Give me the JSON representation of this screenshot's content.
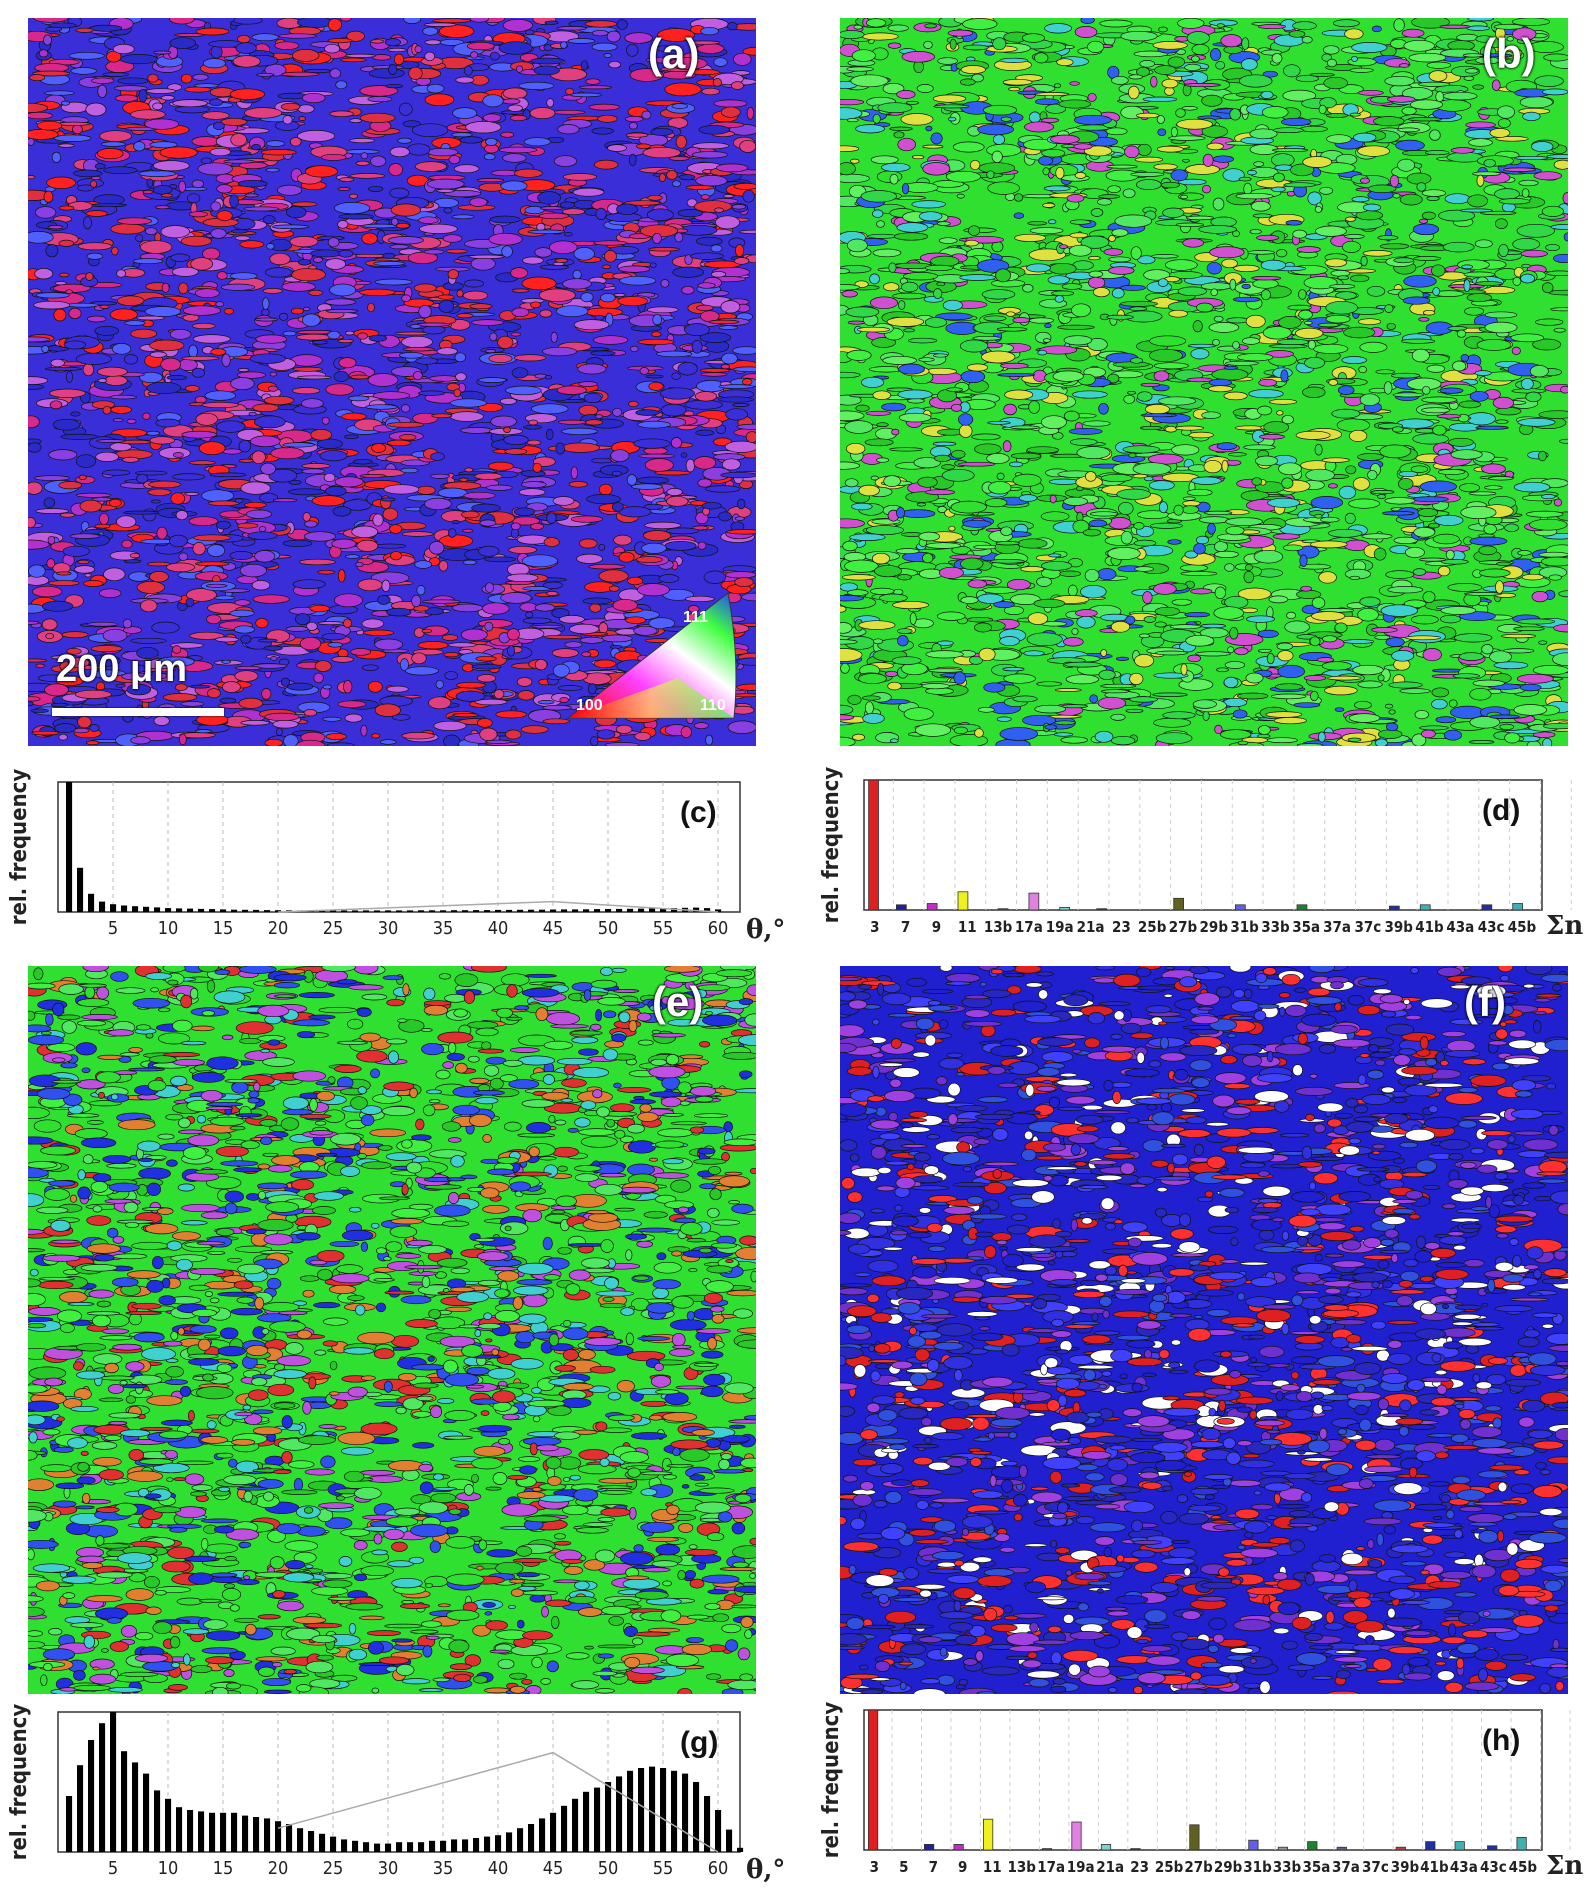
{
  "panels": {
    "a": {
      "label": "(a)",
      "palette": [
        "#3a2ed8",
        "#2a2ac8",
        "#d8288a",
        "#e03040",
        "#b030d0",
        "#8a40e0",
        "#ff2020",
        "#5060ff",
        "#c060e0",
        "#e04080"
      ]
    },
    "b": {
      "label": "(b)",
      "palette": [
        "#30e030",
        "#40f040",
        "#28c828",
        "#50e860",
        "#30d848",
        "#60f060",
        "#d050d0",
        "#3060f0",
        "#e0e040",
        "#40d0d0"
      ]
    },
    "e": {
      "label": "(e)",
      "palette": [
        "#30e030",
        "#40f040",
        "#2030e0",
        "#e03030",
        "#28c828",
        "#40d0d0",
        "#e08030",
        "#50e860",
        "#3050f0",
        "#c050e0"
      ]
    },
    "f": {
      "label": "(f)",
      "palette": [
        "#2020d0",
        "#3030e0",
        "#2828c0",
        "#e02020",
        "#7030d0",
        "#4040ff",
        "#ff3030",
        "#a040e0",
        "#ffffff",
        "#3050e0"
      ]
    }
  },
  "scale_bar": {
    "text": "200 μm"
  },
  "color_key": {
    "labels": [
      "111",
      "100",
      "110"
    ]
  },
  "chart_data": [
    {
      "id": "c",
      "label": "(c)",
      "type": "bar",
      "ylabel": "rel. frequency",
      "xunit": "θ,°",
      "xticks": [
        5,
        10,
        15,
        20,
        25,
        30,
        35,
        40,
        45,
        50,
        55,
        60
      ],
      "xlim": [
        0,
        62
      ],
      "ylim": [
        0,
        1
      ],
      "x": [
        1,
        2,
        3,
        4,
        5,
        6,
        7,
        8,
        9,
        10,
        11,
        12,
        13,
        14,
        15,
        16,
        17,
        18,
        19,
        20,
        21,
        22,
        23,
        24,
        25,
        26,
        27,
        28,
        29,
        30,
        31,
        32,
        33,
        34,
        35,
        36,
        37,
        38,
        39,
        40,
        41,
        42,
        43,
        44,
        45,
        46,
        47,
        48,
        49,
        50,
        51,
        52,
        53,
        54,
        55,
        56,
        57,
        58,
        59,
        60
      ],
      "values": [
        1.0,
        0.34,
        0.14,
        0.08,
        0.06,
        0.05,
        0.045,
        0.04,
        0.035,
        0.03,
        0.028,
        0.026,
        0.024,
        0.022,
        0.02,
        0.018,
        0.017,
        0.016,
        0.015,
        0.014,
        0.013,
        0.012,
        0.012,
        0.012,
        0.012,
        0.012,
        0.012,
        0.012,
        0.012,
        0.012,
        0.012,
        0.012,
        0.013,
        0.013,
        0.013,
        0.014,
        0.014,
        0.015,
        0.015,
        0.016,
        0.016,
        0.017,
        0.018,
        0.018,
        0.019,
        0.02,
        0.02,
        0.021,
        0.022,
        0.023,
        0.024,
        0.025,
        0.026,
        0.027,
        0.028,
        0.03,
        0.032,
        0.034,
        0.03,
        0.02
      ],
      "reference_line": {
        "x": [
          20,
          45,
          60
        ],
        "y": [
          0.0,
          0.08,
          0.0
        ]
      }
    },
    {
      "id": "d",
      "label": "(d)",
      "type": "bar",
      "ylabel": "rel. frequency",
      "xunit": "Σn",
      "categories": [
        "3",
        "7",
        "9",
        "11",
        "13b",
        "17a",
        "19a",
        "21a",
        "23",
        "25b",
        "27b",
        "29b",
        "31b",
        "33b",
        "35a",
        "37a",
        "37c",
        "39b",
        "41b",
        "43a",
        "43c",
        "45b"
      ],
      "bars": [
        {
          "i": 0.0,
          "value": 1.0,
          "color": "#e02020"
        },
        {
          "i": 0.9,
          "value": 0.04,
          "color": "#2020a0"
        },
        {
          "i": 1.9,
          "value": 0.05,
          "color": "#c030c0"
        },
        {
          "i": 2.9,
          "value": 0.14,
          "color": "#f0f020"
        },
        {
          "i": 4.2,
          "value": 0.01,
          "color": "#555"
        },
        {
          "i": 5.2,
          "value": 0.13,
          "color": "#e080e0"
        },
        {
          "i": 6.2,
          "value": 0.02,
          "color": "#80d0d0"
        },
        {
          "i": 7.4,
          "value": 0.01,
          "color": "#444"
        },
        {
          "i": 9.9,
          "value": 0.09,
          "color": "#606020"
        },
        {
          "i": 11.9,
          "value": 0.04,
          "color": "#6060e0"
        },
        {
          "i": 13.9,
          "value": 0.04,
          "color": "#208030"
        },
        {
          "i": 16.9,
          "value": 0.03,
          "color": "#2030a0"
        },
        {
          "i": 17.9,
          "value": 0.04,
          "color": "#40b0b0"
        },
        {
          "i": 19.9,
          "value": 0.04,
          "color": "#2030a0"
        },
        {
          "i": 20.9,
          "value": 0.05,
          "color": "#40b0b0"
        }
      ]
    },
    {
      "id": "g",
      "label": "(g)",
      "type": "bar",
      "ylabel": "rel. frequency",
      "xunit": "θ,°",
      "xticks": [
        5,
        10,
        15,
        20,
        25,
        30,
        35,
        40,
        45,
        50,
        55,
        60
      ],
      "xlim": [
        0,
        62
      ],
      "ylim": [
        0,
        1
      ],
      "x": [
        1,
        2,
        3,
        4,
        5,
        6,
        7,
        8,
        9,
        10,
        11,
        12,
        13,
        14,
        15,
        16,
        17,
        18,
        19,
        20,
        21,
        22,
        23,
        24,
        25,
        26,
        27,
        28,
        29,
        30,
        31,
        32,
        33,
        34,
        35,
        36,
        37,
        38,
        39,
        40,
        41,
        42,
        43,
        44,
        45,
        46,
        47,
        48,
        49,
        50,
        51,
        52,
        53,
        54,
        55,
        56,
        57,
        58,
        59,
        60,
        61,
        62
      ],
      "values": [
        0.4,
        0.62,
        0.8,
        0.92,
        1.0,
        0.72,
        0.64,
        0.56,
        0.44,
        0.38,
        0.32,
        0.3,
        0.29,
        0.28,
        0.28,
        0.28,
        0.26,
        0.25,
        0.24,
        0.22,
        0.2,
        0.17,
        0.15,
        0.13,
        0.11,
        0.09,
        0.08,
        0.07,
        0.06,
        0.06,
        0.07,
        0.07,
        0.07,
        0.08,
        0.08,
        0.09,
        0.09,
        0.1,
        0.11,
        0.12,
        0.14,
        0.17,
        0.2,
        0.24,
        0.28,
        0.33,
        0.38,
        0.43,
        0.46,
        0.5,
        0.54,
        0.58,
        0.6,
        0.61,
        0.6,
        0.58,
        0.56,
        0.5,
        0.4,
        0.3,
        0.16,
        0.03
      ],
      "reference_line": {
        "x": [
          20,
          45,
          60
        ],
        "y": [
          0.17,
          0.71,
          0.0
        ]
      }
    },
    {
      "id": "h",
      "label": "(h)",
      "type": "bar",
      "ylabel": "rel. frequency",
      "xunit": "Σn",
      "categories": [
        "3",
        "5",
        "7",
        "9",
        "11",
        "13b",
        "17a",
        "19a",
        "21a",
        "23",
        "25b",
        "27b",
        "29b",
        "31b",
        "33b",
        "35a",
        "37a",
        "37c",
        "39b",
        "41b",
        "43a",
        "43c",
        "45b"
      ],
      "bars": [
        {
          "i": 0.0,
          "value": 1.0,
          "color": "#e02020"
        },
        {
          "i": 1.9,
          "value": 0.04,
          "color": "#2020a0"
        },
        {
          "i": 2.9,
          "value": 0.04,
          "color": "#c030c0"
        },
        {
          "i": 3.9,
          "value": 0.22,
          "color": "#f0f020"
        },
        {
          "i": 5.9,
          "value": 0.01,
          "color": "#555"
        },
        {
          "i": 6.9,
          "value": 0.2,
          "color": "#e080e0"
        },
        {
          "i": 7.9,
          "value": 0.04,
          "color": "#80d0d0"
        },
        {
          "i": 8.9,
          "value": 0.01,
          "color": "#444"
        },
        {
          "i": 10.9,
          "value": 0.18,
          "color": "#606020"
        },
        {
          "i": 12.9,
          "value": 0.07,
          "color": "#6060e0"
        },
        {
          "i": 13.9,
          "value": 0.02,
          "color": "#999"
        },
        {
          "i": 14.9,
          "value": 0.06,
          "color": "#208030"
        },
        {
          "i": 15.9,
          "value": 0.02,
          "color": "#606090"
        },
        {
          "i": 17.9,
          "value": 0.02,
          "color": "#c04040"
        },
        {
          "i": 18.9,
          "value": 0.06,
          "color": "#2030a0"
        },
        {
          "i": 19.9,
          "value": 0.06,
          "color": "#40b0b0"
        },
        {
          "i": 21.0,
          "value": 0.03,
          "color": "#2030a0"
        },
        {
          "i": 22.0,
          "value": 0.09,
          "color": "#40b0b0"
        }
      ]
    }
  ]
}
